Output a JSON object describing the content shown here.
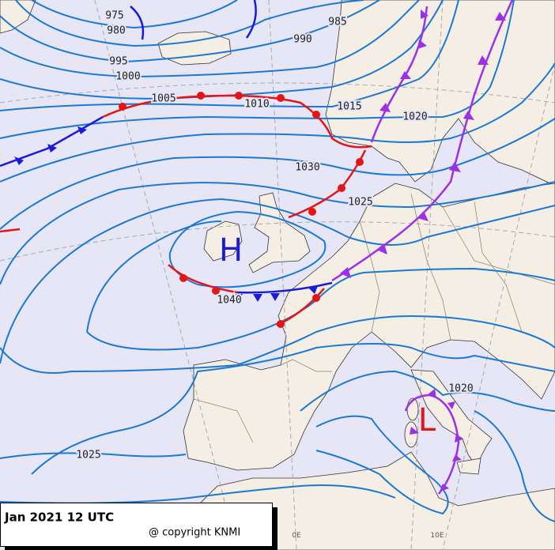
{
  "map": {
    "pressure_labels": [
      "975",
      "980",
      "985",
      "990",
      "995",
      "1000",
      "1005",
      "1010",
      "1015",
      "1020",
      "1030",
      "1025",
      "1040",
      "1020",
      "1025"
    ],
    "high_label": "H",
    "low_label": "L",
    "longitude_labels": [
      "0E",
      "10E"
    ],
    "caption": {
      "title": "Jan 2021 12 UTC",
      "copyright": "@ copyright KNMI"
    }
  }
}
